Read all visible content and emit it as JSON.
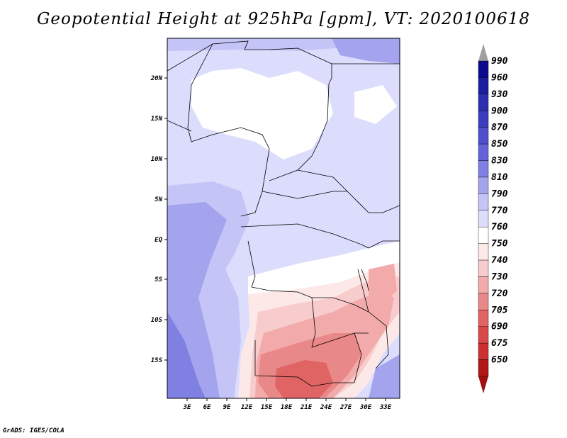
{
  "title": "Geopotential Height at 925hPa [gpm], VT: 2020100618",
  "credit": "GrADS: IGES/COLA",
  "map": {
    "lat_ticks": [
      "20N",
      "15N",
      "10N",
      "5N",
      "EQ",
      "5S",
      "10S",
      "15S"
    ],
    "lon_ticks": [
      "3E",
      "6E",
      "9E",
      "12E",
      "15E",
      "18E",
      "21E",
      "24E",
      "27E",
      "30E",
      "33E"
    ]
  },
  "colorbar": {
    "levels": [
      {
        "label": "990",
        "color": "#0a0a8a"
      },
      {
        "label": "960",
        "color": "#1c1c9e"
      },
      {
        "label": "930",
        "color": "#2d2daf"
      },
      {
        "label": "900",
        "color": "#3c3cbf"
      },
      {
        "label": "870",
        "color": "#4f4fcc"
      },
      {
        "label": "850",
        "color": "#6464d8"
      },
      {
        "label": "830",
        "color": "#8080e2"
      },
      {
        "label": "810",
        "color": "#a3a3ee"
      },
      {
        "label": "790",
        "color": "#c4c4f6"
      },
      {
        "label": "770",
        "color": "#dcdcfc"
      },
      {
        "label": "760",
        "color": "#ffffff"
      },
      {
        "label": "750",
        "color": "#fde8e8"
      },
      {
        "label": "740",
        "color": "#f8cccc"
      },
      {
        "label": "730",
        "color": "#f2aaaa"
      },
      {
        "label": "720",
        "color": "#e98888"
      },
      {
        "label": "705",
        "color": "#e06464"
      },
      {
        "label": "690",
        "color": "#d84848"
      },
      {
        "label": "675",
        "color": "#cc3030"
      },
      {
        "label": "650",
        "color": "#b01818"
      }
    ],
    "top_color": "#a0a0a0",
    "bottom_color": "#a01010"
  }
}
